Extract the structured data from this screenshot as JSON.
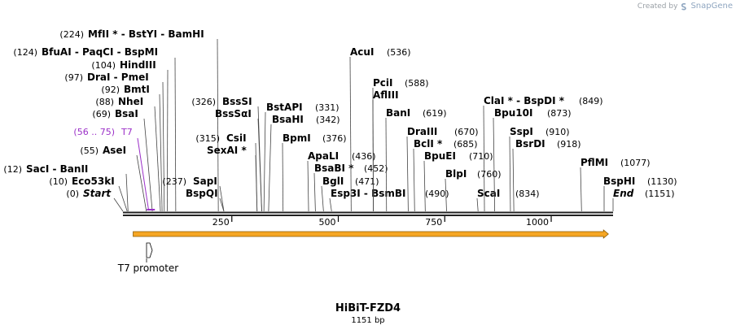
{
  "credit": {
    "prefix": "Created by",
    "brand": "SnapGene"
  },
  "sequence": {
    "name": "HiBiT-FZD4",
    "length_label": "1151 bp",
    "length": 1151
  },
  "colors": {
    "backbone": "#222222",
    "orf_fill": "#f6a623",
    "orf_stroke": "#8a5a00",
    "t7": "#9b30c8",
    "line": "#444444"
  },
  "ticks": [
    {
      "pos": 250,
      "label": "250"
    },
    {
      "pos": 500,
      "label": "500"
    },
    {
      "pos": 750,
      "label": "750"
    },
    {
      "pos": 1000,
      "label": "1000"
    }
  ],
  "features": [
    {
      "name": "T7 promoter",
      "start": 56,
      "end": 75,
      "type": "promoter",
      "color": "#9b30c8",
      "label": "T7",
      "range": "(56 .. 75)"
    }
  ],
  "orf": {
    "start": 24,
    "end": 1140
  },
  "sites": [
    {
      "pos": 0,
      "num": "(0)",
      "name": "Start",
      "italic": true
    },
    {
      "pos": 10,
      "num": "(10)",
      "name": "Eco53kI"
    },
    {
      "pos": 12,
      "num": "(12)",
      "name": "SacI  - BanII"
    },
    {
      "pos": 55,
      "num": "(55)",
      "name": "AseI"
    },
    {
      "pos": 69,
      "num": "(69)",
      "name": "BsaI"
    },
    {
      "pos": 88,
      "num": "(88)",
      "name": "NheI"
    },
    {
      "pos": 92,
      "num": "(92)",
      "name": "BmtI"
    },
    {
      "pos": 97,
      "num": "(97)",
      "name": "DraI  - PmeI"
    },
    {
      "pos": 104,
      "num": "(104)",
      "name": "HindIII"
    },
    {
      "pos": 124,
      "num": "(124)",
      "name": "BfuAI  - PaqCI  - BspMI"
    },
    {
      "pos": 224,
      "num": "(224)",
      "name": "MfII * - BstYI  - BamHI"
    },
    {
      "pos": 237,
      "num": "(237)",
      "name": "SapI"
    },
    {
      "pos": 237,
      "num": "",
      "name": "BspQI"
    },
    {
      "pos": 315,
      "num": "(315)",
      "name": "CsiI"
    },
    {
      "pos": 315,
      "num": "",
      "name": "SexAI *"
    },
    {
      "pos": 326,
      "num": "(326)",
      "name": "BssSI"
    },
    {
      "pos": 326,
      "num": "",
      "name": "BssSαI"
    },
    {
      "pos": 331,
      "num": "(331)",
      "name": "BstAPI"
    },
    {
      "pos": 342,
      "num": "(342)",
      "name": "BsaHI"
    },
    {
      "pos": 376,
      "num": "(376)",
      "name": "BpmI"
    },
    {
      "pos": 436,
      "num": "(436)",
      "name": "ApaLI"
    },
    {
      "pos": 452,
      "num": "(452)",
      "name": "BsaBI *"
    },
    {
      "pos": 471,
      "num": "(471)",
      "name": "BglI"
    },
    {
      "pos": 490,
      "num": "(490)",
      "name": "Esp3I  - BsmBI"
    },
    {
      "pos": 536,
      "num": "(536)",
      "name": "AcuI"
    },
    {
      "pos": 588,
      "num": "(588)",
      "name": "PciI"
    },
    {
      "pos": 588,
      "num": "",
      "name": "AflIII"
    },
    {
      "pos": 619,
      "num": "(619)",
      "name": "BanI"
    },
    {
      "pos": 670,
      "num": "(670)",
      "name": "DraIII"
    },
    {
      "pos": 685,
      "num": "(685)",
      "name": "BclI *"
    },
    {
      "pos": 710,
      "num": "(710)",
      "name": "BpuEI"
    },
    {
      "pos": 760,
      "num": "(760)",
      "name": "BlpI"
    },
    {
      "pos": 834,
      "num": "(834)",
      "name": "ScaI"
    },
    {
      "pos": 849,
      "num": "(849)",
      "name": "ClaI * - BspDI *"
    },
    {
      "pos": 873,
      "num": "(873)",
      "name": "Bpu10I"
    },
    {
      "pos": 910,
      "num": "(910)",
      "name": "SspI"
    },
    {
      "pos": 918,
      "num": "(918)",
      "name": "BsrDI"
    },
    {
      "pos": 1077,
      "num": "(1077)",
      "name": "PflMI"
    },
    {
      "pos": 1130,
      "num": "(1130)",
      "name": "BspHI"
    },
    {
      "pos": 1151,
      "num": "(1151)",
      "name": "End",
      "italic": true
    }
  ]
}
